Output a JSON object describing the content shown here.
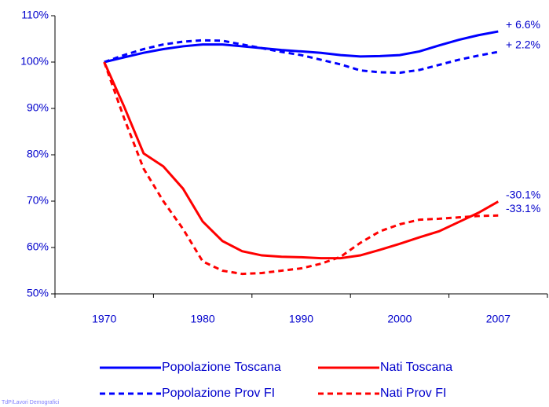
{
  "chart_data": {
    "type": "line",
    "categories": [
      "1970",
      null,
      null,
      null,
      null,
      "1980",
      null,
      null,
      null,
      null,
      "1990",
      null,
      null,
      null,
      null,
      "2000",
      null,
      null,
      null,
      null,
      "2007"
    ],
    "series": [
      {
        "name": "Popolazione Toscana",
        "color": "#0000ff",
        "dash": false,
        "values": [
          100,
          101,
          102,
          102.8,
          103.4,
          103.8,
          103.8,
          103.4,
          103,
          102.6,
          102.3,
          102,
          101.5,
          101.2,
          101.3,
          101.5,
          102.3,
          103.6,
          104.8,
          105.8,
          106.6
        ]
      },
      {
        "name": "Nati Toscana",
        "color": "#ff0000",
        "dash": false,
        "values": [
          100,
          90.5,
          80.3,
          77.5,
          72.7,
          65.6,
          61.4,
          59.2,
          58.3,
          58,
          57.9,
          57.7,
          57.7,
          58.3,
          59.5,
          60.8,
          62.2,
          63.5,
          65.5,
          67.5,
          69.9
        ]
      },
      {
        "name": "Popolazione Prov FI",
        "color": "#0000ff",
        "dash": true,
        "values": [
          100,
          101.5,
          102.8,
          103.8,
          104.4,
          104.7,
          104.6,
          103.8,
          103,
          102.2,
          101.5,
          100.5,
          99.5,
          98.2,
          97.8,
          97.7,
          98.3,
          99.4,
          100.5,
          101.4,
          102.2
        ]
      },
      {
        "name": "Nati Prov FI",
        "color": "#ff0000",
        "dash": true,
        "values": [
          100,
          88,
          77,
          70,
          64,
          57,
          55,
          54.3,
          54.5,
          55,
          55.5,
          56.5,
          58,
          61,
          63.5,
          65,
          66,
          66.2,
          66.5,
          66.8,
          66.9
        ]
      }
    ],
    "annotations": [
      "+ 6.6%",
      "-30.1%",
      "+ 2.2%",
      "-33.1%"
    ],
    "ylim": [
      50,
      110
    ],
    "yticks": [
      {
        "value": 50,
        "label": "50%"
      },
      {
        "value": 60,
        "label": "60%"
      },
      {
        "value": 70,
        "label": "70%"
      },
      {
        "value": 80,
        "label": "80%"
      },
      {
        "value": 90,
        "label": "90%"
      },
      {
        "value": 100,
        "label": "100%"
      },
      {
        "value": 110,
        "label": "110%"
      }
    ],
    "grid": false,
    "legend": "bottom",
    "footer": "TdP/Lavori Demografici"
  }
}
